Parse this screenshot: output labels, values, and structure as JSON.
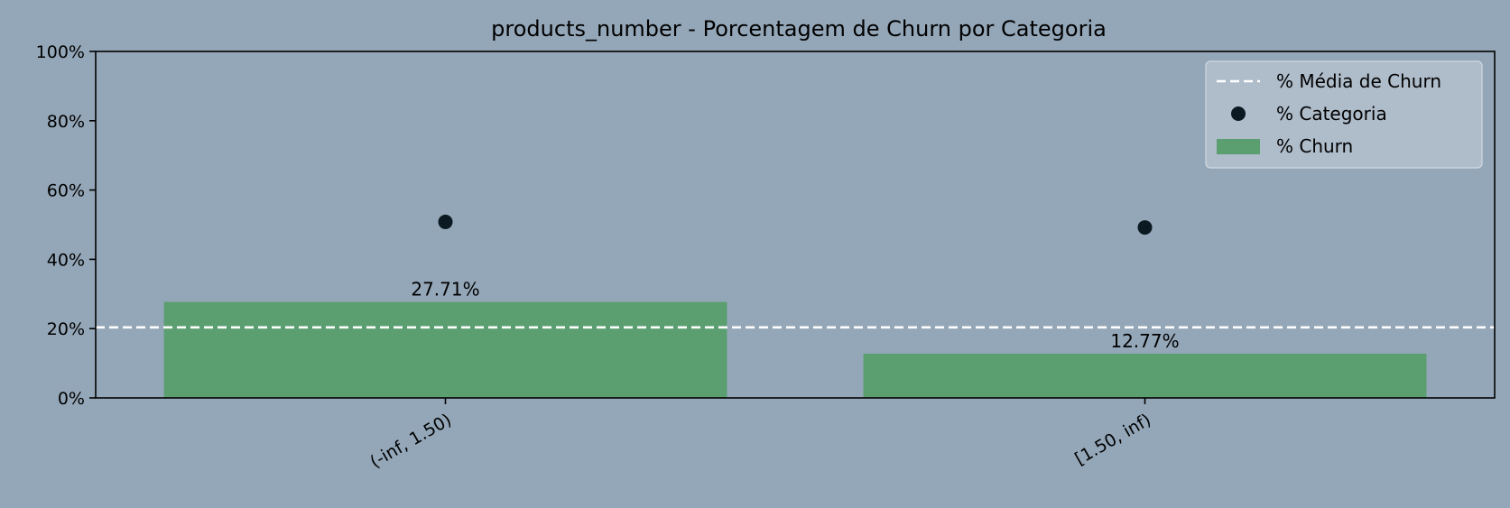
{
  "chart_data": {
    "type": "bar",
    "title": "products_number - Porcentagem de Churn por Categoria",
    "xlabel": "",
    "ylabel": "",
    "ylim": [
      0,
      100
    ],
    "yticks": [
      "0%",
      "20%",
      "40%",
      "60%",
      "80%",
      "100%"
    ],
    "ytick_values": [
      0,
      20,
      40,
      60,
      80,
      100
    ],
    "categories": [
      "(-inf, 1.50)",
      "[1.50, inf)"
    ],
    "series": [
      {
        "name": "% Churn",
        "kind": "bar",
        "color": "#5b9f71",
        "values": [
          27.71,
          12.77
        ],
        "labels": [
          "27.71%",
          "12.77%"
        ]
      },
      {
        "name": "% Categoria",
        "kind": "scatter",
        "color": "#0b1a22",
        "values": [
          50.8,
          49.2
        ]
      },
      {
        "name": "% Média de Churn",
        "kind": "hline",
        "color": "#ffffff",
        "value": 20.37
      }
    ],
    "legend": {
      "placement": "top-right",
      "entries": [
        "% Média de Churn",
        "% Categoria",
        "% Churn"
      ]
    },
    "grid": false,
    "colors": {
      "background": "#94a7b8",
      "legend_bg": "#b4c0cc",
      "legend_border": "#d2dae2",
      "axis": "#000000"
    }
  }
}
